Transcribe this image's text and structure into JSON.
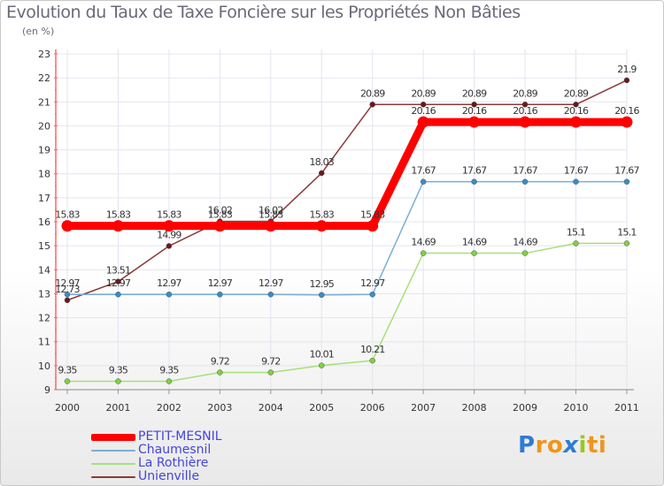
{
  "title": "Evolution du Taux de Taxe Foncière sur les Propriétés Non Bâties",
  "subtitle": "(en %)",
  "logo": {
    "letters": [
      "P",
      "r",
      "o",
      "x",
      "i",
      "t",
      "i"
    ],
    "colors": [
      "#2e7bd6",
      "#f0951a",
      "#f0951a",
      "#2e7bd6",
      "#9cc818",
      "#f0951a",
      "#f0951a"
    ]
  },
  "chart_data": {
    "type": "line",
    "title": "Evolution du Taux de Taxe Foncière sur les Propriétés Non Bâties",
    "ylabel": "(en %)",
    "xlabel": "",
    "x": [
      "2000",
      "2001",
      "2002",
      "2003",
      "2004",
      "2005",
      "2006",
      "2007",
      "2008",
      "2009",
      "2010",
      "2011"
    ],
    "ylim": [
      9,
      23
    ],
    "yticks": [
      "9",
      "10",
      "11",
      "12",
      "13",
      "14",
      "15",
      "16",
      "17",
      "18",
      "19",
      "20",
      "21",
      "22",
      "23"
    ],
    "legend_position": "bottom-left",
    "series": [
      {
        "name": "PETIT-MESNIL",
        "color": "#ff0000",
        "marker_color": "#ff0000",
        "emphasis": "thick",
        "values": [
          15.83,
          15.83,
          15.83,
          15.83,
          15.83,
          15.83,
          15.83,
          20.16,
          20.16,
          20.16,
          20.16,
          20.16
        ],
        "labels": [
          "15.83",
          "15.83",
          "15.83",
          "15.83",
          "15.83",
          "15.83",
          "15.83",
          "20.16",
          "20.16",
          "20.16",
          "20.16",
          "20.16"
        ]
      },
      {
        "name": "Chaumesnil",
        "color": "#7aaed6",
        "marker_color": "#3a8cc8",
        "values": [
          12.97,
          12.97,
          12.97,
          12.97,
          12.97,
          12.95,
          12.97,
          17.67,
          17.67,
          17.67,
          17.67,
          17.67
        ],
        "labels": [
          "12.97",
          "12.97",
          "12.97",
          "12.97",
          "12.97",
          "12.95",
          "12.97",
          "17.67",
          "17.67",
          "17.67",
          "17.67",
          "17.67"
        ]
      },
      {
        "name": "La Rothière",
        "color": "#a6e07a",
        "marker_color": "#80d040",
        "values": [
          9.35,
          9.35,
          9.35,
          9.72,
          9.72,
          10.01,
          10.21,
          14.69,
          14.69,
          14.69,
          15.1,
          15.1
        ],
        "labels": [
          "9.35",
          "9.35",
          "9.35",
          "9.72",
          "9.72",
          "10.01",
          "10.21",
          "14.69",
          "14.69",
          "14.69",
          "15.1",
          "15.1"
        ]
      },
      {
        "name": "Unienville",
        "color": "#8a3a3a",
        "marker_color": "#6a1818",
        "values": [
          12.73,
          13.51,
          14.99,
          16.02,
          16.02,
          18.03,
          20.89,
          20.89,
          20.89,
          20.89,
          20.89,
          21.9
        ],
        "labels": [
          "12.73",
          "13.51",
          "14.99",
          "16.02",
          "16.02",
          "18.03",
          "20.89",
          "20.89",
          "20.89",
          "20.89",
          "20.89",
          "21.9"
        ]
      }
    ]
  }
}
